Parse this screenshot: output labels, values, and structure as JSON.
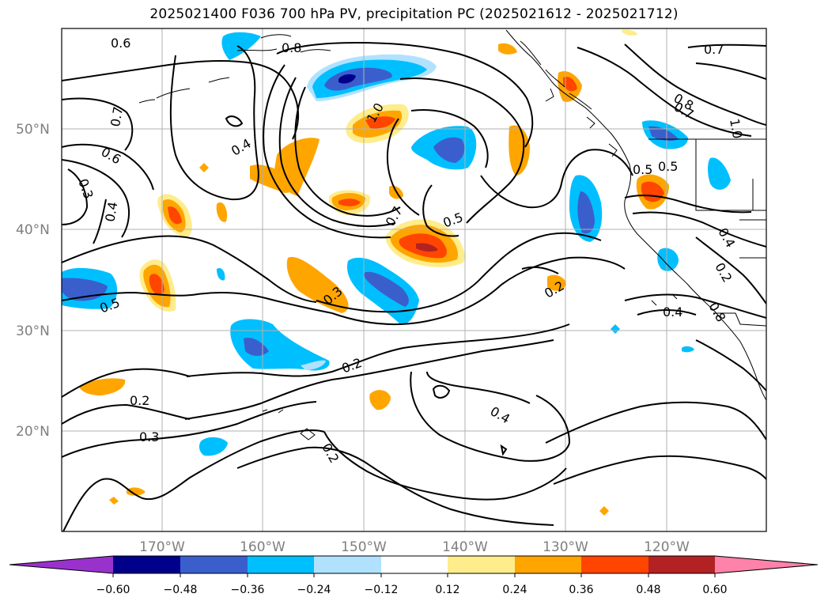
{
  "title": "2025021400 F036 700 hPa PV, precipitation PC (2025021612 - 2025021712)",
  "lat_labels": [
    "50°N",
    "40°N",
    "30°N",
    "20°N"
  ],
  "lon_labels": [
    "170°W",
    "160°W",
    "150°W",
    "140°W",
    "130°W",
    "120°W"
  ],
  "colorbar": {
    "ticks": [
      "−0.60",
      "−0.48",
      "−0.36",
      "−0.24",
      "−0.12",
      "0.12",
      "0.24",
      "0.36",
      "0.48",
      "0.60"
    ],
    "colors": [
      "#9932cc",
      "#00008b",
      "#3a5fcd",
      "#00bfff",
      "#b0e2ff",
      "#ffffff",
      "#ffec8b",
      "#ffa500",
      "#ff4500",
      "#b22222",
      "#ff82ab"
    ]
  },
  "contour_labels": [
    "0.6",
    "0.8",
    "0.7",
    "0.7",
    "0.4",
    "0.6",
    "0.3",
    "0.4",
    "1.0",
    "0.7",
    "0.5",
    "0.5",
    "0.5",
    "0.8",
    "0.7",
    "1.0",
    "0.3",
    "0.2",
    "0.5",
    "0.2",
    "0.4",
    "0.4",
    "0.8",
    "0.2",
    "0.2",
    "0.3",
    "0.4",
    "0.2"
  ]
}
